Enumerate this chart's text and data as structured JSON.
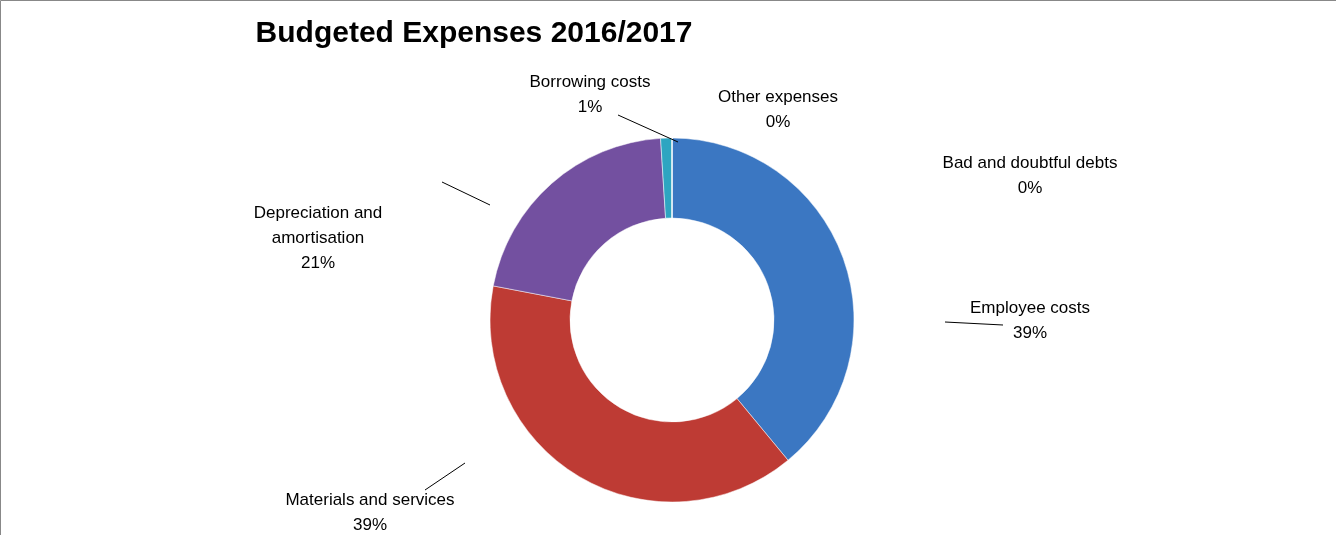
{
  "chart_data": {
    "type": "donut",
    "title": "Budgeted Expenses 2016/2017",
    "categories": [
      "Employee costs",
      "Materials and services",
      "Depreciation and amortisation",
      "Borrowing costs",
      "Other expenses",
      "Bad and doubtful debts"
    ],
    "values": [
      39,
      39,
      21,
      1,
      0,
      0
    ],
    "value_labels": [
      "39%",
      "39%",
      "21%",
      "1%",
      "0%",
      "0%"
    ],
    "colors": [
      "#3b77c2",
      "#be3b34",
      "#7350a0",
      "#2ea5c1",
      "#f08a2a",
      "#2f5f9e"
    ]
  }
}
